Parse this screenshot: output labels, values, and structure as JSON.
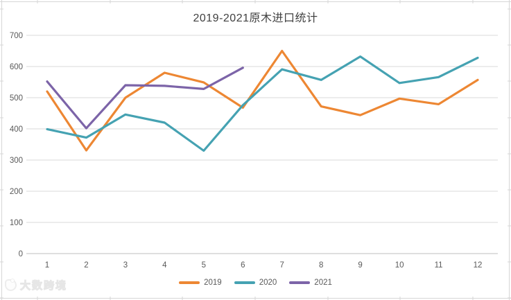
{
  "title": "2019-2021原木进口统计",
  "watermark": {
    "text": "大数跨境"
  },
  "chart_data": {
    "type": "line",
    "title": "2019-2021原木进口统计",
    "x": [
      1,
      2,
      3,
      4,
      5,
      6,
      7,
      8,
      9,
      10,
      11,
      12
    ],
    "series": [
      {
        "name": "2019",
        "color": "#ED8733",
        "values": [
          520,
          331,
          500,
          580,
          549,
          468,
          650,
          472,
          444,
          497,
          479,
          557
        ]
      },
      {
        "name": "2020",
        "color": "#45A2B2",
        "values": [
          399,
          372,
          446,
          420,
          330,
          476,
          591,
          557,
          632,
          547,
          566,
          628
        ]
      },
      {
        "name": "2021",
        "color": "#7C64A8",
        "values": [
          552,
          402,
          540,
          538,
          528,
          596
        ]
      }
    ],
    "ylim": [
      0,
      700
    ],
    "ytick_interval": 100,
    "xlabel": "",
    "ylabel": "",
    "grid": true,
    "legend_position": "bottom"
  },
  "colors": {
    "gridline": "#D9D9D9",
    "axis_line": "#BFBFBF",
    "axis_text": "#595959",
    "title_text": "#404040",
    "edge_lines": "#D6D6D6",
    "background": "#FFFFFF"
  }
}
